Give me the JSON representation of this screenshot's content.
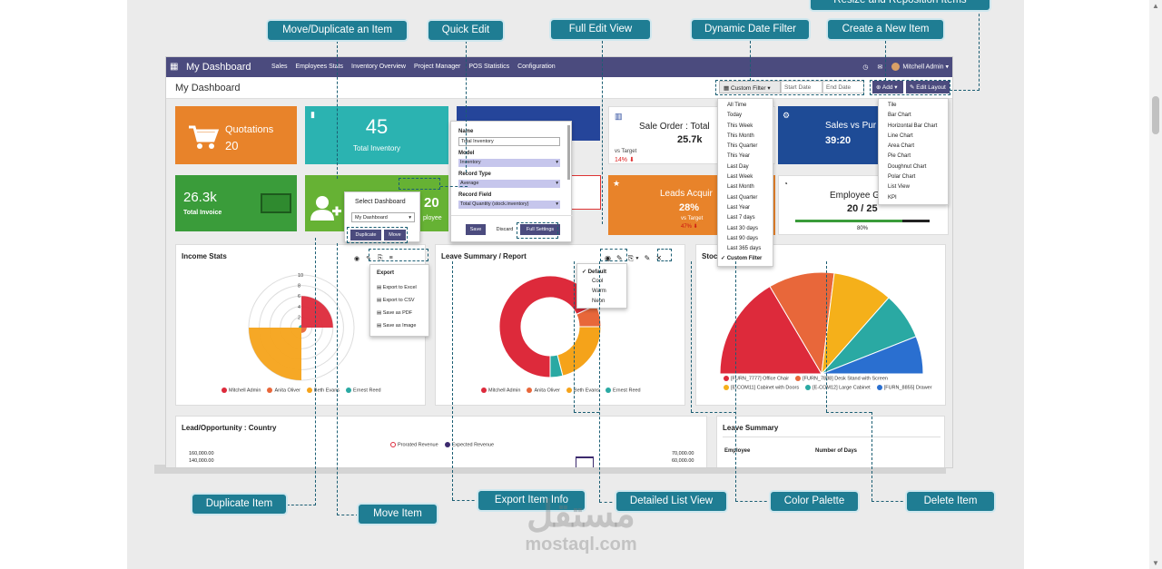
{
  "app": {
    "title": "My Dashboard",
    "menu": [
      "Sales",
      "Employees Stats",
      "Inventory Overview",
      "Project Manager",
      "POS Statistics",
      "Configuration"
    ],
    "user": "Mitchell Admin",
    "page_title": "My Dashboard"
  },
  "toolbar": {
    "filter_label": "Custom Filter",
    "start_date": "Start Date",
    "end_date": "End Date",
    "add_label": "Add",
    "edit_layout_label": "Edit Layout"
  },
  "date_filter_options": [
    "All Time",
    "Today",
    "This Week",
    "This Month",
    "This Quarter",
    "This Year",
    "Last Day",
    "Last Week",
    "Last Month",
    "Last Quarter",
    "Last Year",
    "Last 7 days",
    "Last 30 days",
    "Last 90 days",
    "Last 365 days",
    "Custom Filter"
  ],
  "add_options": [
    "Tile",
    "Bar Chart",
    "Horizontal Bar Chart",
    "Line Chart",
    "Area Chart",
    "Pie Chart",
    "Doughnut Chart",
    "Polar Chart",
    "List View",
    "KPI"
  ],
  "tiles": {
    "quotations": {
      "label": "Quotations",
      "value": "20",
      "color": "#e8832a"
    },
    "inventory": {
      "label": "Total Inventory",
      "value": "45",
      "color": "#2bb3b1"
    },
    "invoice": {
      "label": "Total Invoice",
      "value": "26.3k",
      "color": "#3a9c3a"
    },
    "employee_tile": {
      "value": "20",
      "label": "ployee"
    },
    "sale_order": {
      "label": "Sale Order : Total",
      "value": "25.7k",
      "target": "vs Target",
      "pct": "14%"
    },
    "leads": {
      "label": "Leads Acquir",
      "value": "28%",
      "target": "vs Target",
      "pct": "47%"
    },
    "sales_purchase": {
      "label": "Sales vs Pur",
      "value": "39:20"
    },
    "employee_goal": {
      "label": "Employee G",
      "value": "20 / 25",
      "progress": 80,
      "progress_label": "80%"
    }
  },
  "quick_edit": {
    "name_label": "Name",
    "name_value": "Total Inventory",
    "model_label": "Model",
    "model_value": "Inventory",
    "record_type_label": "Record Type",
    "record_type_value": "Average",
    "record_field_label": "Record Field",
    "record_field_value": "Total Quantity (stock.inventory)",
    "save": "Save",
    "discard": "Discard",
    "full_settings": "Full Settings"
  },
  "select_dashboard": {
    "title": "Select Dashboard",
    "value": "My Dashboard",
    "duplicate": "Duplicate",
    "move": "Move"
  },
  "export_menu": {
    "title": "Export",
    "items": [
      "Export to Excel",
      "Export to CSV",
      "Save as PDF",
      "Save as Image"
    ]
  },
  "palette_menu": {
    "items": [
      "Default",
      "Cool",
      "Warm",
      "Neon"
    ]
  },
  "cards": {
    "income": {
      "title": "Income Stats",
      "legend": [
        "Mitchell Admin",
        "Anita Oliver",
        "Beth Evans",
        "Ernest Reed"
      ]
    },
    "leave": {
      "title": "Leave Summary / Report",
      "legend": [
        "Mitchell Admin",
        "Anita Oliver",
        "Beth Evans",
        "Ernest Reed"
      ]
    },
    "stock": {
      "title": "Stoc",
      "legend": [
        "[FURN_7777] Office Chair",
        "[FURN_7888] Desk Stand with Screen",
        "[E-COM11] Cabinet with Doors",
        "[E-COM12] Large Cabinet",
        "[FURN_8855] Drawer"
      ]
    },
    "lead_country": {
      "title": "Lead/Opportunity : Country",
      "legend": [
        "Prorated Revenue",
        "Expected Revenue"
      ],
      "left_ticks": [
        "160,000.00",
        "140,000.00"
      ],
      "right_ticks": [
        "70,000.00",
        "60,000.00"
      ]
    },
    "leave_summary": {
      "title": "Leave Summary",
      "col1": "Employee",
      "col2": "Number of Days"
    }
  },
  "chart_data": [
    {
      "type": "polar",
      "title": "Income Stats",
      "categories": [
        "Mitchell Admin",
        "Anita Oliver",
        "Beth Evans",
        "Ernest Reed"
      ],
      "values": [
        6,
        1,
        10,
        0.5
      ],
      "rlim": [
        0,
        10
      ],
      "ticks": [
        "10",
        "8",
        "6",
        "4",
        "2"
      ],
      "colors": [
        "#dd2a3b",
        "#e8673a",
        "#f5a31a",
        "#2aa9a3"
      ]
    },
    {
      "type": "doughnut",
      "title": "Leave Summary / Report",
      "categories": [
        "Mitchell Admin",
        "Anita Oliver",
        "Beth Evans",
        "Ernest Reed"
      ],
      "values": [
        68,
        7,
        21,
        4
      ],
      "colors": [
        "#dd2a3b",
        "#e8673a",
        "#f5a31a",
        "#2aa9a3"
      ]
    },
    {
      "type": "pie",
      "title": "Stoc",
      "categories": [
        "[FURN_7777] Office Chair",
        "[FURN_7888] Desk Stand with Screen",
        "[E-COM11] Cabinet with Doors",
        "[E-COM12] Large Cabinet",
        "[FURN_8855] Drawer"
      ],
      "values": [
        33,
        21,
        19,
        15,
        12
      ],
      "colors": [
        "#dd2a3b",
        "#e8673a",
        "#f5b01a",
        "#2aa9a3",
        "#2a6fd0"
      ]
    }
  ],
  "callouts": {
    "resize": "Resize and Reposition Items",
    "move_dup": "Move/Duplicate an Item",
    "quick_edit": "Quick Edit",
    "full_edit": "Full Edit View",
    "date_filter": "Dynamic Date Filter",
    "create": "Create a New Item",
    "duplicate": "Duplicate Item",
    "move": "Move Item",
    "export": "Export Item Info",
    "list_view": "Detailed List View",
    "palette": "Color Palette",
    "delete": "Delete Item"
  },
  "watermark": {
    "ar": "مستقل",
    "en": "mostaql.com"
  },
  "colors": {
    "navbar": "#4b4b7e",
    "callout": "#1f7d93",
    "accent_dark": "#1b5e73"
  }
}
